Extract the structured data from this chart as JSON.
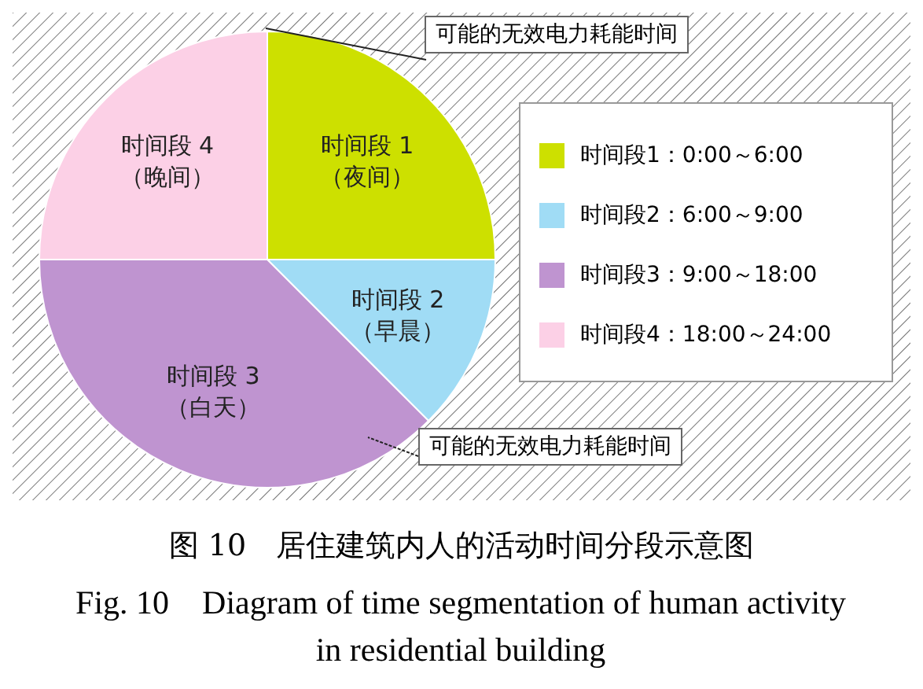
{
  "chart_data": {
    "type": "pie",
    "title": "图 10　居住建筑内人的活动时间分段示意图",
    "subtitle": "Fig. 10　Diagram of time segmentation of human activity in residential building",
    "categories": [
      "时间段1：0:00～6:00",
      "时间段2：6:00～9:00",
      "时间段3：9:00～18:00",
      "时间段4：18:00～24:00"
    ],
    "values": [
      25,
      12.5,
      37.5,
      25
    ],
    "colors": [
      "#cde000",
      "#a0dcf5",
      "#bf94d0",
      "#fcd0e6"
    ],
    "legend": "right",
    "annotations": [
      {
        "text": "时间段 1\n（夜间）",
        "x": "时间段1：0:00～6:00"
      },
      {
        "text": "时间段 2\n（早晨）",
        "x": "时间段2：6:00～9:00"
      },
      {
        "text": "时间段 3\n（白天）",
        "x": "时间段3：9:00～18:00"
      },
      {
        "text": "时间段 4\n（晚间）",
        "x": "时间段4：18:00～24:00"
      },
      "可能的无效电力耗能时间",
      "可能的无效电力耗能时间"
    ]
  }
}
